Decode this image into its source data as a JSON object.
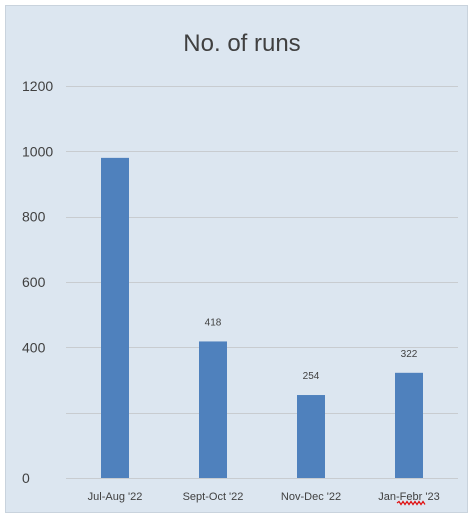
{
  "chart_data": {
    "type": "bar",
    "title": "No. of runs",
    "xlabel": "",
    "ylabel": "",
    "categories": [
      "Jul-Aug '22",
      "Sept-Oct '22",
      "Nov-Dec '22",
      "Jan-Febr '23"
    ],
    "values": [
      980,
      418,
      254,
      322
    ],
    "data_labels": [
      "",
      "418",
      "254",
      "322"
    ],
    "ylim": [
      0,
      1200
    ],
    "y_tick_values": [
      0,
      400,
      600,
      800,
      1000,
      1200
    ],
    "y_tick_labels": [
      "0",
      "400",
      "600",
      "800",
      "1000",
      "1200"
    ],
    "gridline_values": [
      200,
      400,
      600,
      800,
      1000,
      1200
    ],
    "grid": true,
    "legend": "none",
    "colors": {
      "bar": "#4f81bd",
      "background": "#dce6f0",
      "gridline": "#c8ccd0",
      "text": "#404040",
      "spellcheck_underline": "#e01010"
    }
  }
}
